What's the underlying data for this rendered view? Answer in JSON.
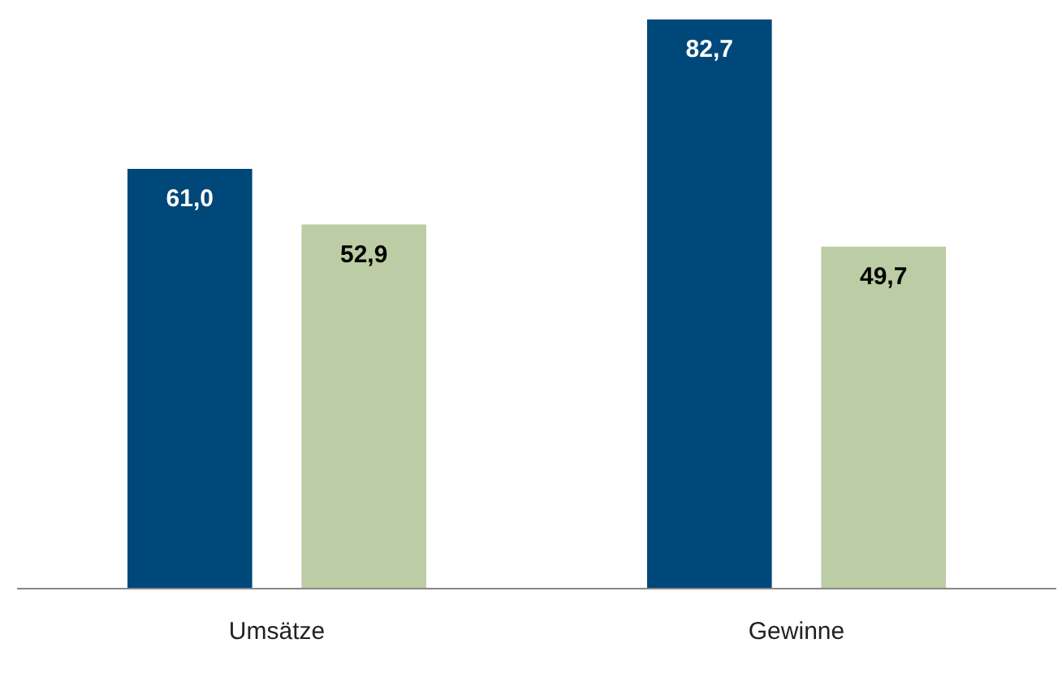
{
  "chart_data": {
    "type": "bar",
    "categories": [
      "Umsätze",
      "Gewinne"
    ],
    "series": [
      {
        "color": "#00477a",
        "values": [
          61.0,
          82.7
        ],
        "value_labels": [
          "61,0",
          "82,7"
        ]
      },
      {
        "color": "#bccca4",
        "values": [
          52.9,
          49.7
        ],
        "value_labels": [
          "52,9",
          "49,7"
        ]
      }
    ],
    "grid": false
  }
}
